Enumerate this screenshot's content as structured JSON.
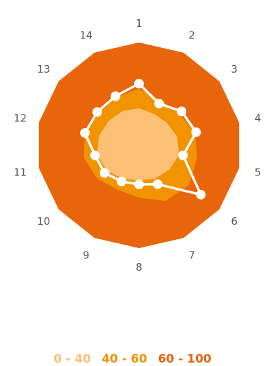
{
  "chart_data": {
    "type": "radar",
    "categories": [
      "1",
      "2",
      "3",
      "4",
      "5",
      "6",
      "7",
      "8",
      "9",
      "10",
      "11",
      "12",
      "13",
      "14"
    ],
    "r_range": [
      0,
      100
    ],
    "bands": [
      {
        "label": "0 - 40",
        "min": 0,
        "max": 40,
        "color": "#fbbf75"
      },
      {
        "label": "40 - 60",
        "min": 40,
        "max": 60,
        "color": "#f29300"
      },
      {
        "label": "60 - 100",
        "min": 60,
        "max": 100,
        "color": "#e8650c"
      }
    ],
    "band_profiles": [
      {
        "band": "0 - 40",
        "values": [
          36,
          34,
          35,
          38,
          40,
          38,
          36,
          34,
          36,
          40,
          42,
          40,
          38,
          37
        ]
      },
      {
        "band": "40 - 60",
        "values": [
          55,
          49,
          50,
          56,
          58,
          62,
          60,
          51,
          48,
          52,
          55,
          54,
          50,
          52
        ]
      },
      {
        "band": "60 - 100",
        "values": [
          100,
          100,
          100,
          100,
          100,
          100,
          100,
          100,
          100,
          100,
          100,
          100,
          100,
          100
        ]
      }
    ],
    "series": [
      {
        "values": [
          60,
          45,
          53,
          57,
          44,
          77,
          42,
          38,
          39,
          43,
          44,
          54,
          52,
          53
        ],
        "color": "#ffffff"
      }
    ],
    "legend_position": "bottom",
    "grid": false
  }
}
